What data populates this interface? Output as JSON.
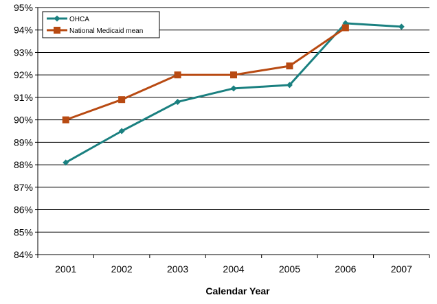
{
  "chart_data": {
    "type": "line",
    "title": "",
    "xlabel": "Calendar Year",
    "ylabel": "",
    "categories": [
      "2001",
      "2002",
      "2003",
      "2004",
      "2005",
      "2006",
      "2007"
    ],
    "ylim": [
      84,
      95
    ],
    "y_ticks": [
      84,
      85,
      86,
      87,
      88,
      89,
      90,
      91,
      92,
      93,
      94,
      95
    ],
    "y_tick_labels": [
      "84%",
      "85%",
      "86%",
      "87%",
      "88%",
      "89%",
      "90%",
      "91%",
      "92%",
      "93%",
      "94%",
      "95%"
    ],
    "grid": "horizontal",
    "legend_position": "top-left",
    "series": [
      {
        "name": "OHCA",
        "values": [
          88.1,
          89.5,
          90.8,
          91.4,
          91.55,
          94.3,
          94.15
        ],
        "color": "#1a8080",
        "marker": "diamond"
      },
      {
        "name": "National Medicaid mean",
        "values": [
          90.0,
          90.9,
          92.0,
          92.0,
          92.4,
          94.1,
          null
        ],
        "color": "#b84a12",
        "marker": "square"
      }
    ]
  }
}
